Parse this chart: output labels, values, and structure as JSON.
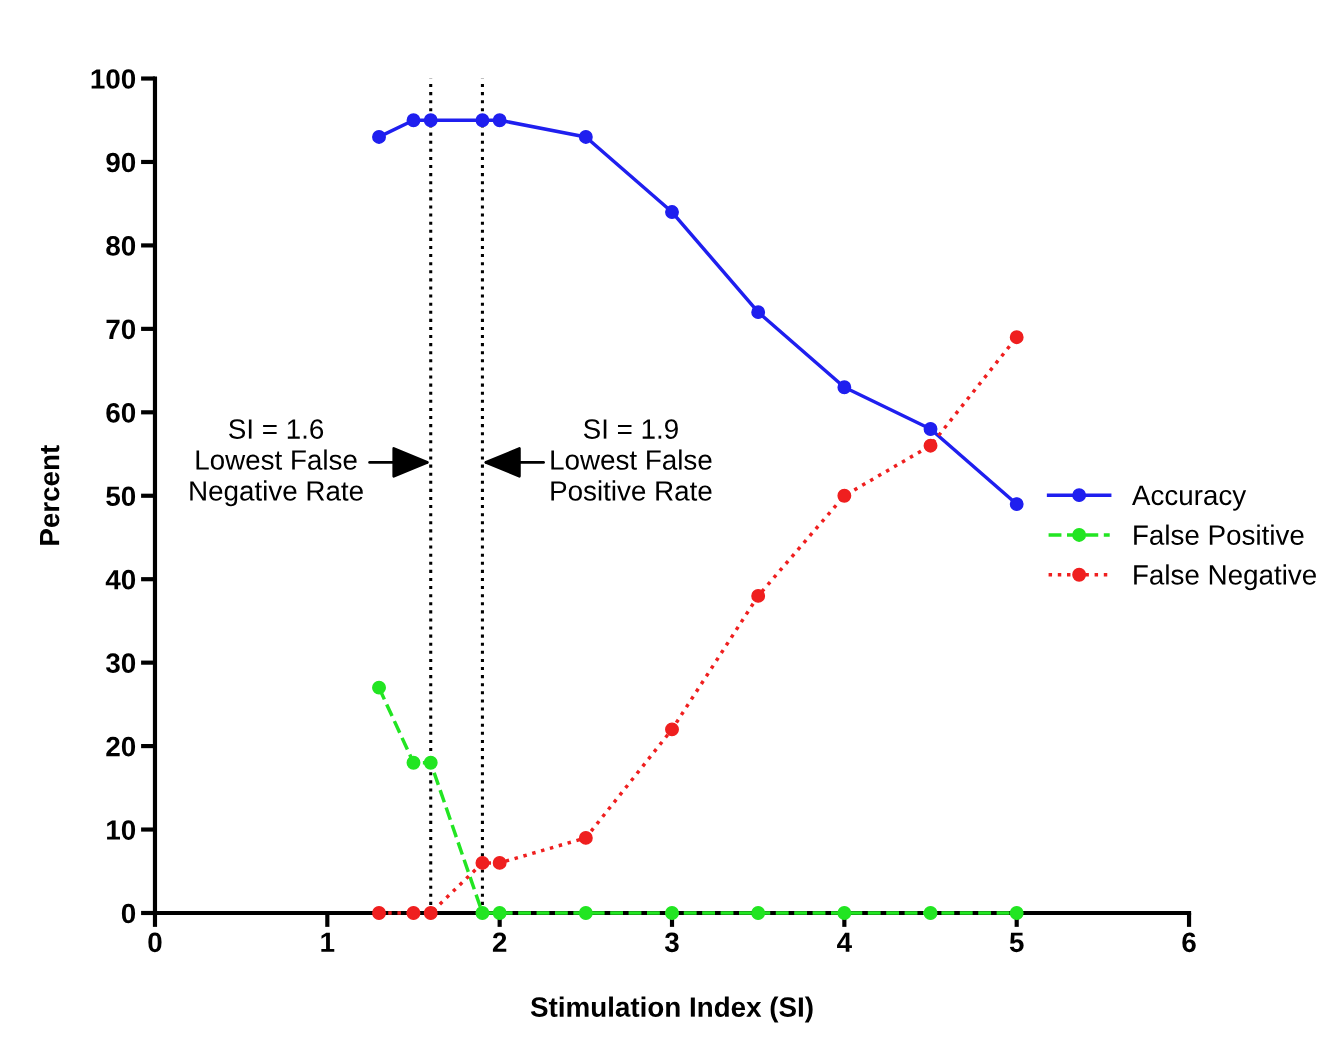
{
  "chart_data": {
    "type": "line",
    "xlabel": "Stimulation Index (SI)",
    "ylabel": "Percent",
    "x": [
      1.3,
      1.5,
      1.6,
      1.9,
      2.0,
      2.5,
      3,
      3.5,
      4,
      4.5,
      5
    ],
    "series": [
      {
        "name": "Accuracy",
        "color": "#1f1fef",
        "line_style": "solid",
        "values": [
          93,
          95,
          95,
          95,
          95,
          93,
          84,
          72,
          63,
          58,
          49
        ]
      },
      {
        "name": "False Positive",
        "color": "#22e522",
        "line_style": "dashed",
        "values": [
          27,
          18,
          18,
          0,
          0,
          0,
          0,
          0,
          0,
          0,
          0
        ]
      },
      {
        "name": "False Negative",
        "color": "#ef1f1f",
        "line_style": "dotted",
        "values": [
          0,
          0,
          0,
          6,
          6,
          9,
          22,
          38,
          50,
          56,
          69
        ]
      }
    ],
    "xlim": [
      0,
      6
    ],
    "xticks": [
      0,
      1,
      2,
      3,
      4,
      5,
      6
    ],
    "ylim": [
      0,
      100
    ],
    "yticks": [
      0,
      10,
      20,
      30,
      40,
      50,
      60,
      70,
      80,
      90,
      100
    ],
    "marker": "circle",
    "grid": false,
    "legend": "right",
    "ref_lines": [
      {
        "axis": "x",
        "value": 1.6,
        "color": "#000000",
        "line_style": "dotted"
      },
      {
        "axis": "x",
        "value": 1.9,
        "color": "#000000",
        "line_style": "dotted"
      }
    ],
    "annotations": [
      {
        "text": "SI = 1.6\nLowest False\nNegative Rate",
        "x": 1.6,
        "y": 54
      },
      {
        "text": "SI = 1.9\nLowest False\nPositive Rate",
        "x": 1.9,
        "y": 54
      }
    ]
  }
}
